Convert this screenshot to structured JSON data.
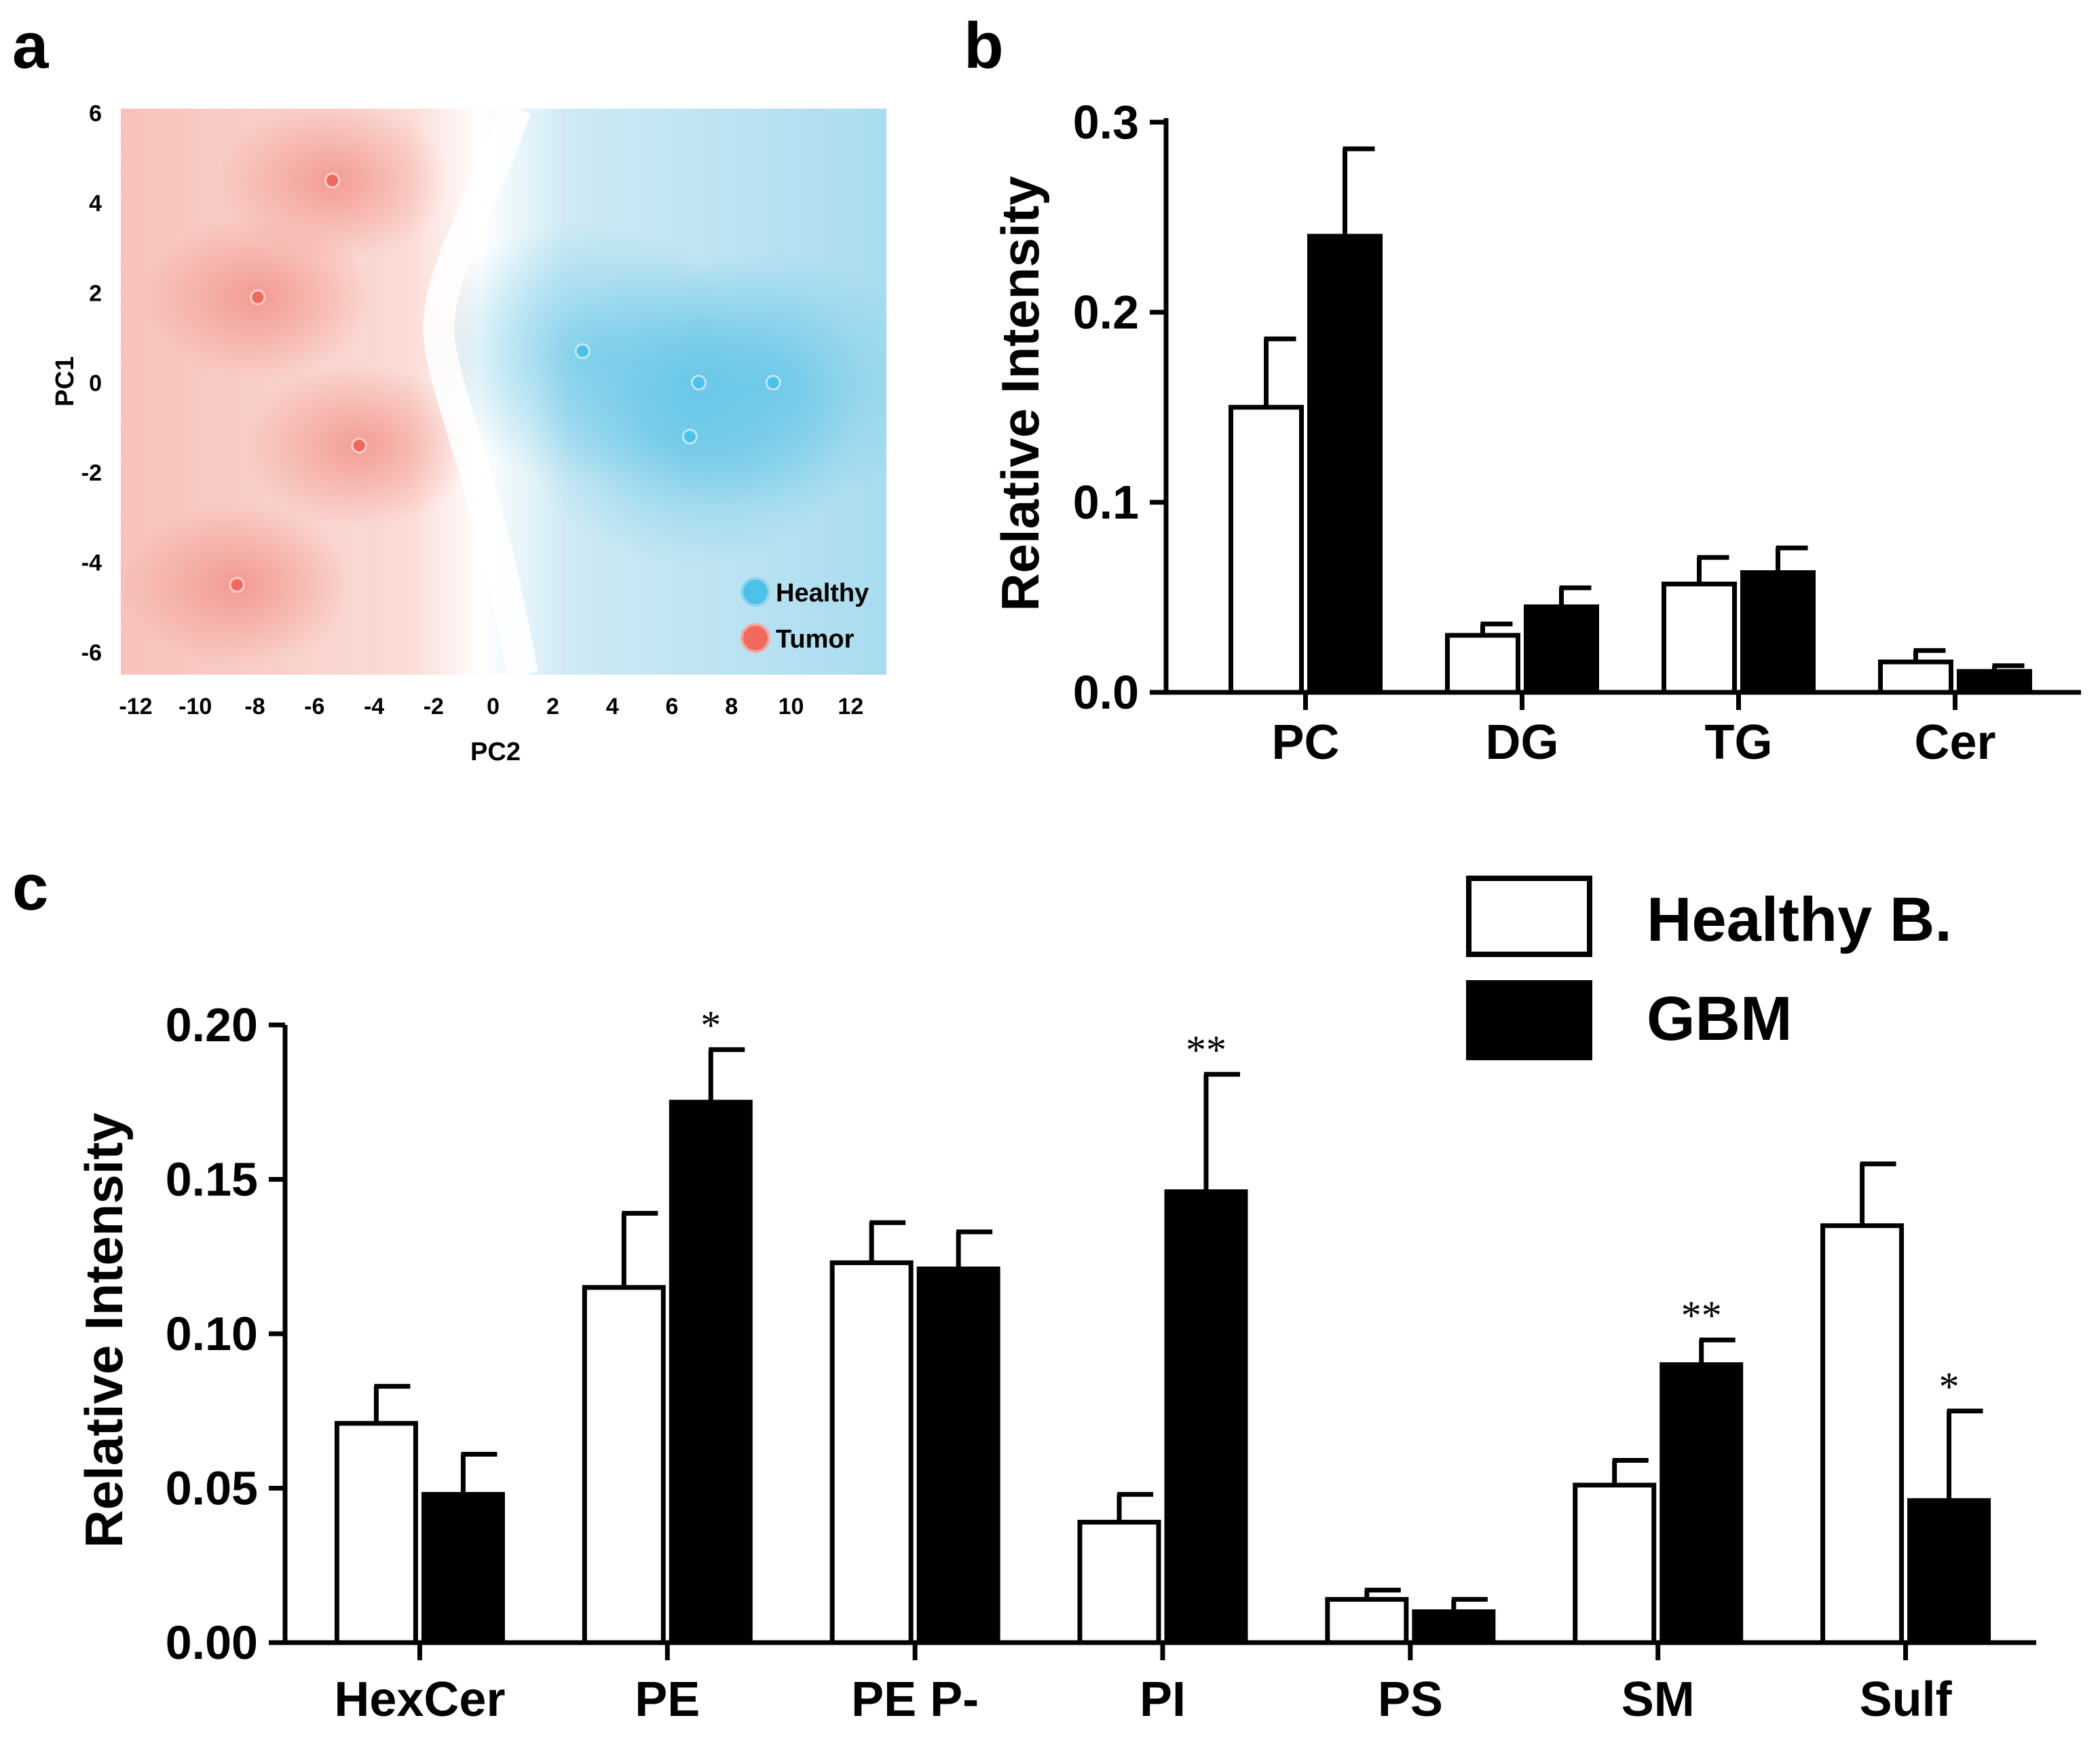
{
  "panels": {
    "a": "a",
    "b": "b",
    "c": "c"
  },
  "colors": {
    "healthy": "#4cc1e9",
    "tumor": "#ef6a5c",
    "healthy_bar": "#ffffff",
    "gbm_bar": "#000000"
  },
  "legend_main": {
    "healthy": "Healthy B.",
    "gbm": "GBM"
  },
  "chart_data": [
    {
      "panel": "a",
      "type": "scatter",
      "xlabel": "PC2",
      "ylabel": "PC1",
      "xlim": [
        -12.5,
        13.2
      ],
      "ylim": [
        -6.5,
        6.1
      ],
      "xticks": [
        -12,
        -10,
        -8,
        -6,
        -4,
        -2,
        0,
        2,
        4,
        6,
        8,
        10,
        12
      ],
      "yticks": [
        6,
        4,
        2,
        0,
        -2,
        -4,
        -6
      ],
      "legend": [
        "Healthy",
        "Tumor"
      ],
      "legend_position": "bottom-right",
      "series": [
        {
          "name": "Healthy",
          "points": [
            [
              3.0,
              0.7
            ],
            [
              6.9,
              0.0
            ],
            [
              9.4,
              0.0
            ],
            [
              6.6,
              -1.2
            ]
          ]
        },
        {
          "name": "Tumor",
          "points": [
            [
              -5.4,
              4.5
            ],
            [
              -7.9,
              1.9
            ],
            [
              -4.5,
              -1.4
            ],
            [
              -8.6,
              -4.5
            ]
          ]
        }
      ]
    },
    {
      "panel": "b",
      "type": "bar",
      "ylabel": "Relative Intensity",
      "ylim": [
        0,
        0.3
      ],
      "yticks": [
        "0.0",
        "0.1",
        "0.2",
        "0.3"
      ],
      "categories": [
        "PC",
        "DG",
        "TG",
        "Cer"
      ],
      "series": [
        {
          "name": "Healthy B.",
          "values": [
            0.15,
            0.03,
            0.057,
            0.016
          ],
          "errors": [
            0.036,
            0.006,
            0.014,
            0.006
          ]
        },
        {
          "name": "GBM",
          "values": [
            0.24,
            0.045,
            0.063,
            0.011
          ],
          "errors": [
            0.046,
            0.01,
            0.013,
            0.003
          ]
        }
      ],
      "annotations": [
        [
          "",
          "",
          "",
          ""
        ],
        [
          "",
          "",
          "",
          ""
        ]
      ]
    },
    {
      "panel": "c",
      "type": "bar",
      "ylabel": "Relative Intensity",
      "ylim": [
        0,
        0.2
      ],
      "yticks": [
        "0.00",
        "0.05",
        "0.10",
        "0.15",
        "0.20"
      ],
      "categories": [
        "HexCer",
        "PE",
        "PE P-",
        "PI",
        "PS",
        "SM",
        "Sulf"
      ],
      "series": [
        {
          "name": "Healthy B.",
          "values": [
            0.071,
            0.115,
            0.123,
            0.039,
            0.014,
            0.051,
            0.135
          ],
          "errors": [
            0.012,
            0.024,
            0.013,
            0.009,
            0.003,
            0.008,
            0.02
          ]
        },
        {
          "name": "GBM",
          "values": [
            0.048,
            0.175,
            0.121,
            0.146,
            0.01,
            0.09,
            0.046
          ],
          "errors": [
            0.013,
            0.017,
            0.012,
            0.038,
            0.004,
            0.008,
            0.029
          ]
        }
      ],
      "annotations": [
        [
          "",
          "",
          "",
          "",
          "",
          "",
          ""
        ],
        [
          "",
          "*",
          "",
          "**",
          "",
          "**",
          "*"
        ]
      ]
    }
  ]
}
